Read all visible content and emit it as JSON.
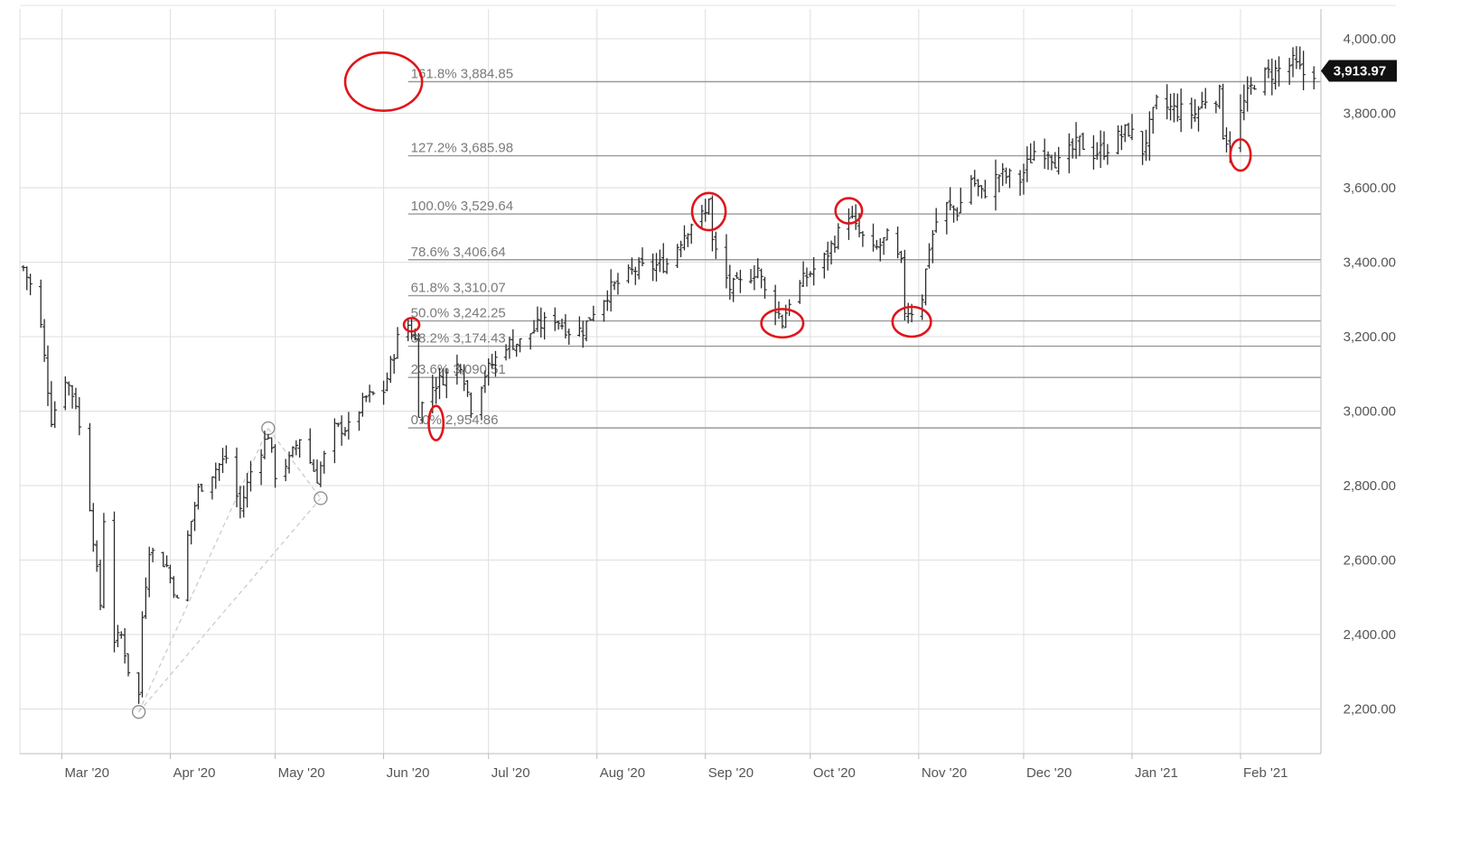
{
  "chart_data": {
    "type": "ohlc",
    "title": "",
    "xlabel": "",
    "ylabel": "",
    "x_range": [
      "2020-02-18",
      "2021-02-24"
    ],
    "ylim": [
      2080,
      4080
    ],
    "grid": true,
    "y_ticks": [
      2200,
      2400,
      2600,
      2800,
      3000,
      3200,
      3400,
      3600,
      3800,
      4000
    ],
    "y_tick_labels": [
      "2,200.00",
      "2,400.00",
      "2,600.00",
      "2,800.00",
      "3,000.00",
      "3,200.00",
      "3,400.00",
      "3,600.00",
      "3,800.00",
      "4,000.00"
    ],
    "x_ticks": [
      {
        "date": "2020-03-01",
        "label": "Mar '20"
      },
      {
        "date": "2020-04-01",
        "label": "Apr '20"
      },
      {
        "date": "2020-05-01",
        "label": "May '20"
      },
      {
        "date": "2020-06-01",
        "label": "Jun '20"
      },
      {
        "date": "2020-07-01",
        "label": "Jul '20"
      },
      {
        "date": "2020-08-01",
        "label": "Aug '20"
      },
      {
        "date": "2020-09-01",
        "label": "Sep '20"
      },
      {
        "date": "2020-10-01",
        "label": "Oct '20"
      },
      {
        "date": "2020-11-01",
        "label": "Nov '20"
      },
      {
        "date": "2020-12-01",
        "label": "Dec '20"
      },
      {
        "date": "2021-01-01",
        "label": "Jan '21"
      },
      {
        "date": "2021-02-01",
        "label": "Feb '21"
      }
    ],
    "last_price": 3913.97,
    "last_price_label": "3,913.97",
    "fib_start_date": "2020-06-08",
    "fib_levels": [
      {
        "label": "161.8% 3,884.85",
        "value": 3884.85
      },
      {
        "label": "127.2% 3,685.98",
        "value": 3685.98
      },
      {
        "label": "100.0% 3,529.64",
        "value": 3529.64
      },
      {
        "label": "78.6% 3,406.64",
        "value": 3406.64
      },
      {
        "label": "61.8% 3,310.07",
        "value": 3310.07
      },
      {
        "label": "50.0% 3,242.25",
        "value": 3242.25
      },
      {
        "label": "38.2% 3,174.43",
        "value": 3174.43
      },
      {
        "label": "23.6% 3,090.51",
        "value": 3090.51
      },
      {
        "label": "0.0% 2,954.86",
        "value": 2954.86
      }
    ],
    "fib_anchors": [
      {
        "date": "2020-03-23",
        "value": 2192
      },
      {
        "date": "2020-04-29",
        "value": 2954
      },
      {
        "date": "2020-05-14",
        "value": 2766
      }
    ],
    "annotations": [
      {
        "type": "ellipse",
        "date": "2020-06-01",
        "value": 3884.85,
        "rx_days": 11,
        "ry_val": 78
      },
      {
        "type": "ellipse",
        "date": "2020-06-09",
        "value": 3232,
        "rx_days": 2.2,
        "ry_val": 18
      },
      {
        "type": "ellipse",
        "date": "2020-06-16",
        "value": 2968,
        "rx_days": 2.1,
        "ry_val": 46
      },
      {
        "type": "ellipse",
        "date": "2020-09-02",
        "value": 3536,
        "rx_days": 4.8,
        "ry_val": 50
      },
      {
        "type": "ellipse",
        "date": "2020-09-23",
        "value": 3236,
        "rx_days": 6,
        "ry_val": 38
      },
      {
        "type": "ellipse",
        "date": "2020-10-12",
        "value": 3538,
        "rx_days": 3.8,
        "ry_val": 34
      },
      {
        "type": "ellipse",
        "date": "2020-10-30",
        "value": 3240,
        "rx_days": 5.5,
        "ry_val": 40
      },
      {
        "type": "ellipse",
        "date": "2021-02-01",
        "value": 3688,
        "rx_days": 2.9,
        "ry_val": 42
      }
    ],
    "ohlc_anchors": [
      [
        "2020-02-19",
        3386
      ],
      [
        "2020-02-21",
        3338
      ],
      [
        "2020-02-24",
        3226
      ],
      [
        "2020-02-27",
        2978
      ],
      [
        "2020-03-02",
        3090
      ],
      [
        "2020-03-05",
        3023
      ],
      [
        "2020-03-09",
        2746
      ],
      [
        "2020-03-12",
        2480
      ],
      [
        "2020-03-13",
        2711
      ],
      [
        "2020-03-16",
        2386
      ],
      [
        "2020-03-18",
        2398
      ],
      [
        "2020-03-20",
        2304
      ],
      [
        "2020-03-23",
        2237
      ],
      [
        "2020-03-24",
        2447
      ],
      [
        "2020-03-26",
        2630
      ],
      [
        "2020-03-31",
        2584
      ],
      [
        "2020-04-03",
        2489
      ],
      [
        "2020-04-06",
        2663
      ],
      [
        "2020-04-09",
        2789
      ],
      [
        "2020-04-14",
        2846
      ],
      [
        "2020-04-17",
        2875
      ],
      [
        "2020-04-21",
        2737
      ],
      [
        "2020-04-24",
        2837
      ],
      [
        "2020-04-29",
        2939
      ],
      [
        "2020-05-01",
        2830
      ],
      [
        "2020-05-05",
        2868
      ],
      [
        "2020-05-08",
        2929
      ],
      [
        "2020-05-13",
        2820
      ],
      [
        "2020-05-14",
        2852
      ],
      [
        "2020-05-18",
        2953
      ],
      [
        "2020-05-22",
        2955
      ],
      [
        "2020-05-27",
        3036
      ],
      [
        "2020-06-01",
        3055
      ],
      [
        "2020-06-05",
        3193
      ],
      [
        "2020-06-08",
        3232
      ],
      [
        "2020-06-10",
        3190
      ],
      [
        "2020-06-11",
        3002
      ],
      [
        "2020-06-15",
        3066
      ],
      [
        "2020-06-19",
        3098
      ],
      [
        "2020-06-23",
        3131
      ],
      [
        "2020-06-26",
        3009
      ],
      [
        "2020-06-30",
        3100
      ],
      [
        "2020-07-06",
        3180
      ],
      [
        "2020-07-10",
        3185
      ],
      [
        "2020-07-15",
        3227
      ],
      [
        "2020-07-20",
        3251
      ],
      [
        "2020-07-24",
        3216
      ],
      [
        "2020-07-28",
        3218
      ],
      [
        "2020-07-31",
        3271
      ],
      [
        "2020-08-05",
        3328
      ],
      [
        "2020-08-12",
        3380
      ],
      [
        "2020-08-18",
        3390
      ],
      [
        "2020-08-21",
        3397
      ],
      [
        "2020-08-26",
        3478
      ],
      [
        "2020-08-28",
        3508
      ],
      [
        "2020-09-01",
        3527
      ],
      [
        "2020-09-02",
        3580
      ],
      [
        "2020-09-03",
        3455
      ],
      [
        "2020-09-04",
        3426
      ],
      [
        "2020-09-08",
        3331
      ],
      [
        "2020-09-11",
        3341
      ],
      [
        "2020-09-16",
        3385
      ],
      [
        "2020-09-18",
        3319
      ],
      [
        "2020-09-21",
        3281
      ],
      [
        "2020-09-23",
        3237
      ],
      [
        "2020-09-25",
        3298
      ],
      [
        "2020-09-30",
        3363
      ],
      [
        "2020-10-05",
        3409
      ],
      [
        "2020-10-09",
        3477
      ],
      [
        "2020-10-12",
        3534
      ],
      [
        "2020-10-14",
        3488
      ],
      [
        "2020-10-19",
        3427
      ],
      [
        "2020-10-23",
        3465
      ],
      [
        "2020-10-27",
        3391
      ],
      [
        "2020-10-28",
        3271
      ],
      [
        "2020-10-30",
        3270
      ],
      [
        "2020-11-02",
        3310
      ],
      [
        "2020-11-04",
        3443
      ],
      [
        "2020-11-06",
        3509
      ],
      [
        "2020-11-09",
        3550
      ],
      [
        "2020-11-12",
        3537
      ],
      [
        "2020-11-16",
        3627
      ],
      [
        "2020-11-19",
        3582
      ],
      [
        "2020-11-24",
        3635
      ],
      [
        "2020-11-30",
        3622
      ],
      [
        "2020-12-04",
        3699
      ],
      [
        "2020-12-08",
        3702
      ],
      [
        "2020-12-11",
        3663
      ],
      [
        "2020-12-17",
        3722
      ],
      [
        "2020-12-21",
        3694
      ],
      [
        "2020-12-24",
        3703
      ],
      [
        "2020-12-31",
        3756
      ],
      [
        "2021-01-04",
        3700
      ],
      [
        "2021-01-08",
        3824
      ],
      [
        "2021-01-13",
        3809
      ],
      [
        "2021-01-19",
        3798
      ],
      [
        "2021-01-22",
        3841
      ],
      [
        "2021-01-26",
        3849
      ],
      [
        "2021-01-27",
        3750
      ],
      [
        "2021-01-29",
        3714
      ],
      [
        "2021-02-02",
        3826
      ],
      [
        "2021-02-05",
        3886
      ],
      [
        "2021-02-10",
        3909
      ],
      [
        "2021-02-16",
        3932
      ],
      [
        "2021-02-19",
        3906
      ],
      [
        "2021-02-22",
        3913.97
      ]
    ]
  }
}
